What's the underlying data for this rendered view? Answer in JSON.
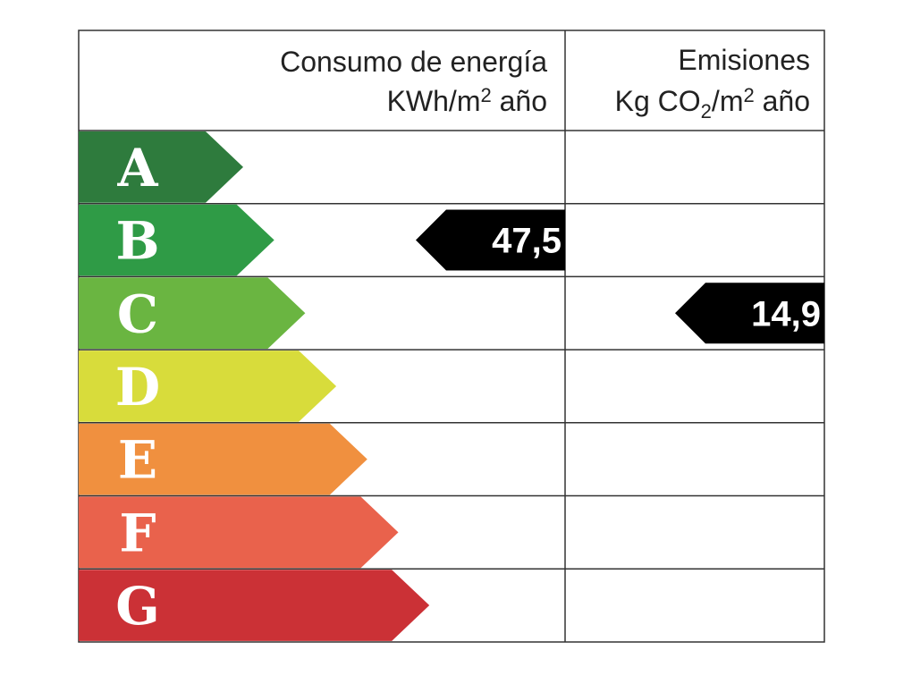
{
  "header": {
    "energy": {
      "title": "Consumo de energía",
      "unit": [
        "KWh/m",
        "2",
        " año"
      ]
    },
    "emissions": {
      "title": "Emisiones",
      "unit": [
        "Kg CO",
        "2",
        "/m",
        "2",
        " año"
      ]
    }
  },
  "ratings": [
    {
      "letter": "A",
      "color": "#2e7b3d"
    },
    {
      "letter": "B",
      "color": "#2f9b46"
    },
    {
      "letter": "C",
      "color": "#6ab541"
    },
    {
      "letter": "D",
      "color": "#d8dc3b"
    },
    {
      "letter": "E",
      "color": "#f0903f"
    },
    {
      "letter": "F",
      "color": "#e9624c"
    },
    {
      "letter": "G",
      "color": "#cb3136"
    }
  ],
  "energy_rating": {
    "value": "47,5",
    "rating": "B"
  },
  "emissions_rating": {
    "value": "14,9",
    "rating": "C"
  }
}
